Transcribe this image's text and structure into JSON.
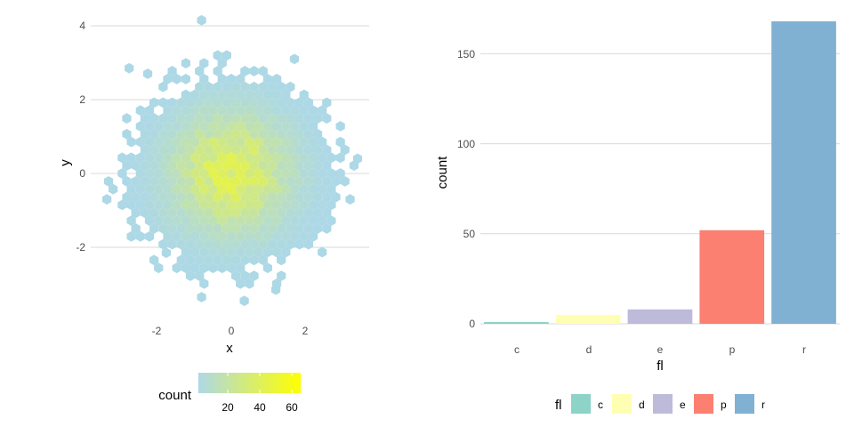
{
  "chart_data": [
    {
      "type": "heatmap",
      "subtype": "hexbin",
      "xlabel": "x",
      "ylabel": "y",
      "xlim": [
        -3.9,
        3.9
      ],
      "ylim": [
        -3.9,
        4.2
      ],
      "x_ticks": [
        "-2",
        "0",
        "2"
      ],
      "y_ticks": [
        "-2",
        "0",
        "2",
        "4"
      ],
      "legend": {
        "title": "count",
        "position": "bottom",
        "ticks": [
          "20",
          "40",
          "60"
        ],
        "range": [
          1,
          65
        ],
        "low_color": "#add8e6",
        "high_color": "#ffff00"
      },
      "grid": "horizontal major",
      "distribution": "bivariate standard normal, approx. 5000 points",
      "isolated_cells": [
        [
          -0.8,
          4.15
        ],
        [
          -2.75,
          2.85
        ],
        [
          3.4,
          0.4
        ],
        [
          -3.35,
          -0.7
        ],
        [
          1.2,
          -3.15
        ],
        [
          -0.8,
          -3.35
        ],
        [
          0.35,
          -3.45
        ],
        [
          -1.75,
          -2.15
        ],
        [
          3.2,
          -0.7
        ],
        [
          -2.25,
          2.7
        ],
        [
          1.7,
          3.1
        ]
      ]
    },
    {
      "type": "bar",
      "xlabel": "fl",
      "ylabel": "count",
      "categories": [
        "c",
        "d",
        "e",
        "p",
        "r"
      ],
      "values": [
        1,
        5,
        8,
        52,
        168
      ],
      "ylim": [
        0,
        168
      ],
      "y_ticks": [
        "0",
        "50",
        "100",
        "150"
      ],
      "colors": [
        "#8dd3c7",
        "#ffffb3",
        "#bebada",
        "#fb8072",
        "#80b1d3"
      ],
      "legend": {
        "title": "fl",
        "position": "bottom",
        "entries": [
          "c",
          "d",
          "e",
          "p",
          "r"
        ]
      },
      "grid": "horizontal major"
    }
  ]
}
